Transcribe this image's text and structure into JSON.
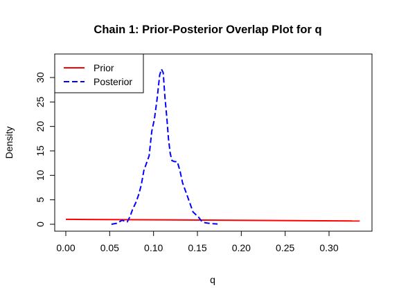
{
  "chart_data": {
    "type": "line",
    "title": "Chain 1: Prior-Posterior Overlap Plot for q",
    "xlabel": "q",
    "ylabel": "Density",
    "xlim": [
      0,
      0.335
    ],
    "ylim": [
      0,
      32
    ],
    "x_ticks": [
      "0.00",
      "0.05",
      "0.10",
      "0.15",
      "0.20",
      "0.25",
      "0.30"
    ],
    "y_ticks": [
      "0",
      "5",
      "10",
      "15",
      "20",
      "25",
      "30"
    ],
    "grid": false,
    "legend_position": "top-left",
    "series": [
      {
        "name": "Prior",
        "color": "#ff0000",
        "line_style": "solid",
        "x": [
          0.0,
          0.335
        ],
        "y": [
          1.0,
          0.67
        ]
      },
      {
        "name": "Posterior",
        "color": "#0000ff",
        "line_style": "dashed",
        "x": [
          0.052,
          0.058,
          0.064,
          0.07,
          0.073,
          0.076,
          0.08,
          0.083,
          0.086,
          0.089,
          0.092,
          0.095,
          0.098,
          0.101,
          0.104,
          0.107,
          0.109,
          0.111,
          0.113,
          0.115,
          0.117,
          0.119,
          0.121,
          0.124,
          0.127,
          0.13,
          0.133,
          0.136,
          0.139,
          0.142,
          0.145,
          0.148,
          0.151,
          0.155,
          0.159,
          0.163,
          0.168,
          0.173
        ],
        "y": [
          0.0,
          0.2,
          0.8,
          0.5,
          1.5,
          3.0,
          4.5,
          6.0,
          8.0,
          11.0,
          12.5,
          14.0,
          19.0,
          21.5,
          25.5,
          30.5,
          31.7,
          31.0,
          26.0,
          22.0,
          17.5,
          14.5,
          13.0,
          12.8,
          12.8,
          11.0,
          8.5,
          7.0,
          5.5,
          4.0,
          2.5,
          2.0,
          1.5,
          0.6,
          0.3,
          0.2,
          0.1,
          0.05
        ]
      }
    ]
  }
}
